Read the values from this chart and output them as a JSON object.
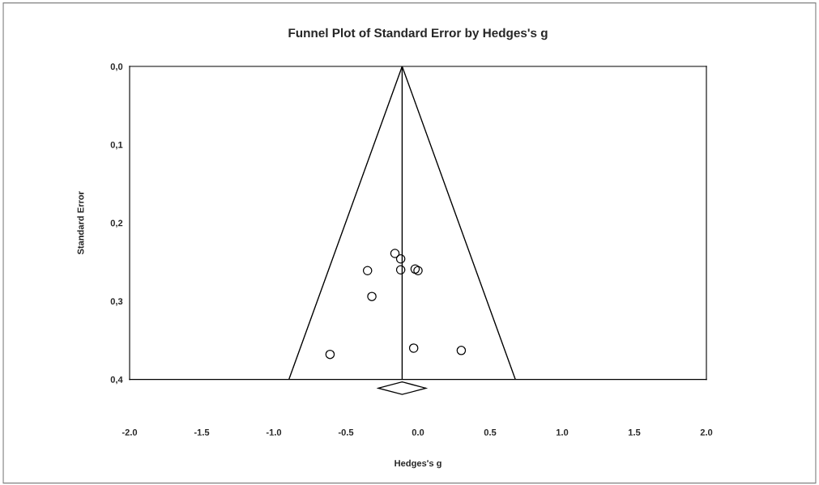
{
  "chart_data": {
    "type": "scatter",
    "title": "Funnel Plot of Standard Error by Hedges's g",
    "xlabel": "Hedges's g",
    "ylabel": "Standard Error",
    "xlim": [
      -2.0,
      2.0
    ],
    "xticks": [
      {
        "value": -2.0,
        "label": "-2.0"
      },
      {
        "value": -1.5,
        "label": "-1.5"
      },
      {
        "value": -1.0,
        "label": "-1.0"
      },
      {
        "value": -0.5,
        "label": "-0.5"
      },
      {
        "value": 0.0,
        "label": "0.0"
      },
      {
        "value": 0.5,
        "label": "0.5"
      },
      {
        "value": 1.0,
        "label": "1.0"
      },
      {
        "value": 1.5,
        "label": "1.5"
      },
      {
        "value": 2.0,
        "label": "2.0"
      }
    ],
    "ylim": [
      0.4,
      0.0
    ],
    "yticks": [
      {
        "value": 0.0,
        "label": "0,0"
      },
      {
        "value": 0.1,
        "label": "0,1"
      },
      {
        "value": 0.2,
        "label": "0,2"
      },
      {
        "value": 0.3,
        "label": "0,3"
      },
      {
        "value": 0.4,
        "label": "0,4"
      }
    ],
    "grid": false,
    "legend": false,
    "ref_lines": [
      {
        "axis": "x",
        "value": -0.11,
        "color": "#000000",
        "line_style": "solid"
      }
    ],
    "series": [
      {
        "color": "#000000",
        "marker": "circle",
        "x": [
          -0.16,
          -0.12,
          -0.35,
          -0.12,
          -0.02,
          0.0,
          -0.32,
          -0.03,
          0.3,
          -0.61
        ],
        "values": [
          0.239,
          0.246,
          0.261,
          0.26,
          0.259,
          0.261,
          0.294,
          0.36,
          0.363,
          0.368
        ]
      },
      {
        "type": "line",
        "marker": "none",
        "color": "#000000",
        "x": [
          -0.895,
          -0.11,
          0.675
        ],
        "values": [
          0.4,
          0.0,
          0.4
        ]
      }
    ]
  }
}
